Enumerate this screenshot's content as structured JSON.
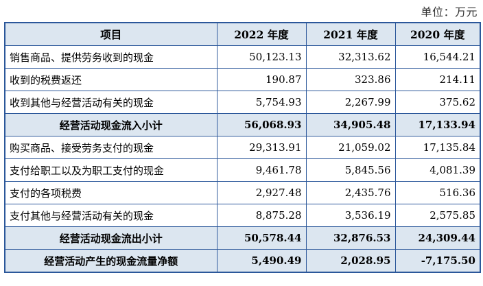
{
  "unit_label": "单位：万元",
  "table": {
    "headers": [
      "项目",
      "2022 年度",
      "2021 年度",
      "2020 年度"
    ],
    "rows": [
      {
        "label": "销售商品、提供劳务收到的现金",
        "v2022": "50,123.13",
        "v2021": "32,313.62",
        "v2020": "16,544.21",
        "subtotal": false
      },
      {
        "label": "收到的税费返还",
        "v2022": "190.87",
        "v2021": "323.86",
        "v2020": "214.11",
        "subtotal": false
      },
      {
        "label": "收到其他与经营活动有关的现金",
        "v2022": "5,754.93",
        "v2021": "2,267.99",
        "v2020": "375.62",
        "subtotal": false
      },
      {
        "label": "经营活动现金流入小计",
        "v2022": "56,068.93",
        "v2021": "34,905.48",
        "v2020": "17,133.94",
        "subtotal": true
      },
      {
        "label": "购买商品、接受劳务支付的现金",
        "v2022": "29,313.91",
        "v2021": "21,059.02",
        "v2020": "17,135.84",
        "subtotal": false
      },
      {
        "label": "支付给职工以及为职工支付的现金",
        "v2022": "9,461.78",
        "v2021": "5,845.56",
        "v2020": "4,081.39",
        "subtotal": false
      },
      {
        "label": "支付的各项税费",
        "v2022": "2,927.48",
        "v2021": "2,435.76",
        "v2020": "516.36",
        "subtotal": false
      },
      {
        "label": "支付其他与经营活动有关的现金",
        "v2022": "8,875.28",
        "v2021": "3,536.19",
        "v2020": "2,575.85",
        "subtotal": false
      },
      {
        "label": "经营活动现金流出小计",
        "v2022": "50,578.44",
        "v2021": "32,876.53",
        "v2020": "24,309.44",
        "subtotal": true
      },
      {
        "label": "经营活动产生的现金流量净额",
        "v2022": "5,490.49",
        "v2021": "2,028.95",
        "v2020": "-7,175.50",
        "subtotal": true
      }
    ]
  },
  "colors": {
    "border": "#2b579a",
    "header_bg": "#dce6f0",
    "subtotal_bg": "#dce6f0"
  }
}
